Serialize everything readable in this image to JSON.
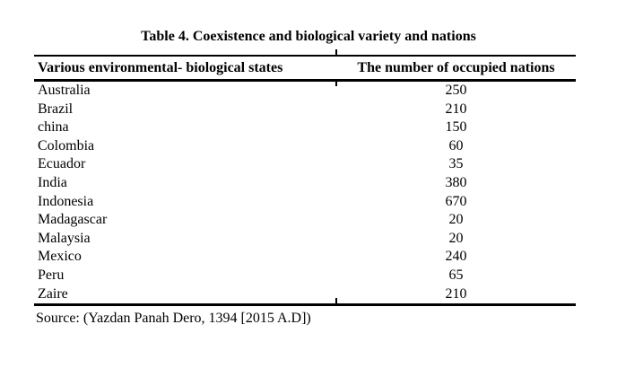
{
  "colors": {
    "background": "#ffffff",
    "ink": "#000000"
  },
  "title": "Table 4. Coexistence and biological variety and nations",
  "table": {
    "columns": [
      "Various environmental- biological states",
      "The number of occupied nations"
    ],
    "rows": [
      {
        "state": "Australia",
        "nations": "250"
      },
      {
        "state": "Brazil",
        "nations": "210"
      },
      {
        "state": "china",
        "nations": "150"
      },
      {
        "state": "Colombia",
        "nations": "60"
      },
      {
        "state": "Ecuador",
        "nations": "35"
      },
      {
        "state": "India",
        "nations": "380"
      },
      {
        "state": "Indonesia",
        "nations": "670"
      },
      {
        "state": "Madagascar",
        "nations": "20"
      },
      {
        "state": "Malaysia",
        "nations": "20"
      },
      {
        "state": "Mexico",
        "nations": "240"
      },
      {
        "state": "Peru",
        "nations": "65"
      },
      {
        "state": "Zaire",
        "nations": "210"
      }
    ]
  },
  "source": "Source: (Yazdan Panah Dero, 1394 [2015 A.D])"
}
